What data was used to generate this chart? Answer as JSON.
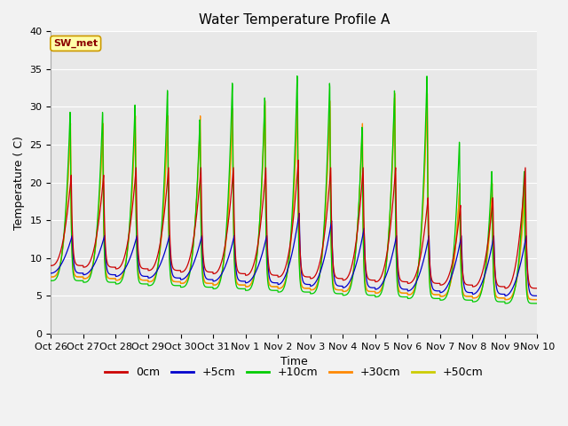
{
  "title": "Water Temperature Profile A",
  "xlabel": "Time",
  "ylabel": "Temperature ( C)",
  "ylim": [
    0,
    40
  ],
  "yticks": [
    0,
    5,
    10,
    15,
    20,
    25,
    30,
    35,
    40
  ],
  "xtick_labels": [
    "Oct 26",
    "Oct 27",
    "Oct 28",
    "Oct 29",
    "Oct 30",
    "Oct 31",
    "Nov 1",
    "Nov 2",
    "Nov 3",
    "Nov 4",
    "Nov 5",
    "Nov 6",
    "Nov 7",
    "Nov 8",
    "Nov 9",
    "Nov 10"
  ],
  "legend_label": "SW_met",
  "series_labels": [
    "0cm",
    "+5cm",
    "+10cm",
    "+30cm",
    "+50cm"
  ],
  "series_colors": [
    "#cc0000",
    "#0000cc",
    "#00cc00",
    "#ff8800",
    "#cccc00"
  ],
  "bg_color": "#e8e8e8",
  "grid_color": "#ffffff",
  "title_fontsize": 11,
  "label_fontsize": 9,
  "tick_fontsize": 8,
  "figsize": [
    6.4,
    4.8
  ],
  "dpi": 100
}
